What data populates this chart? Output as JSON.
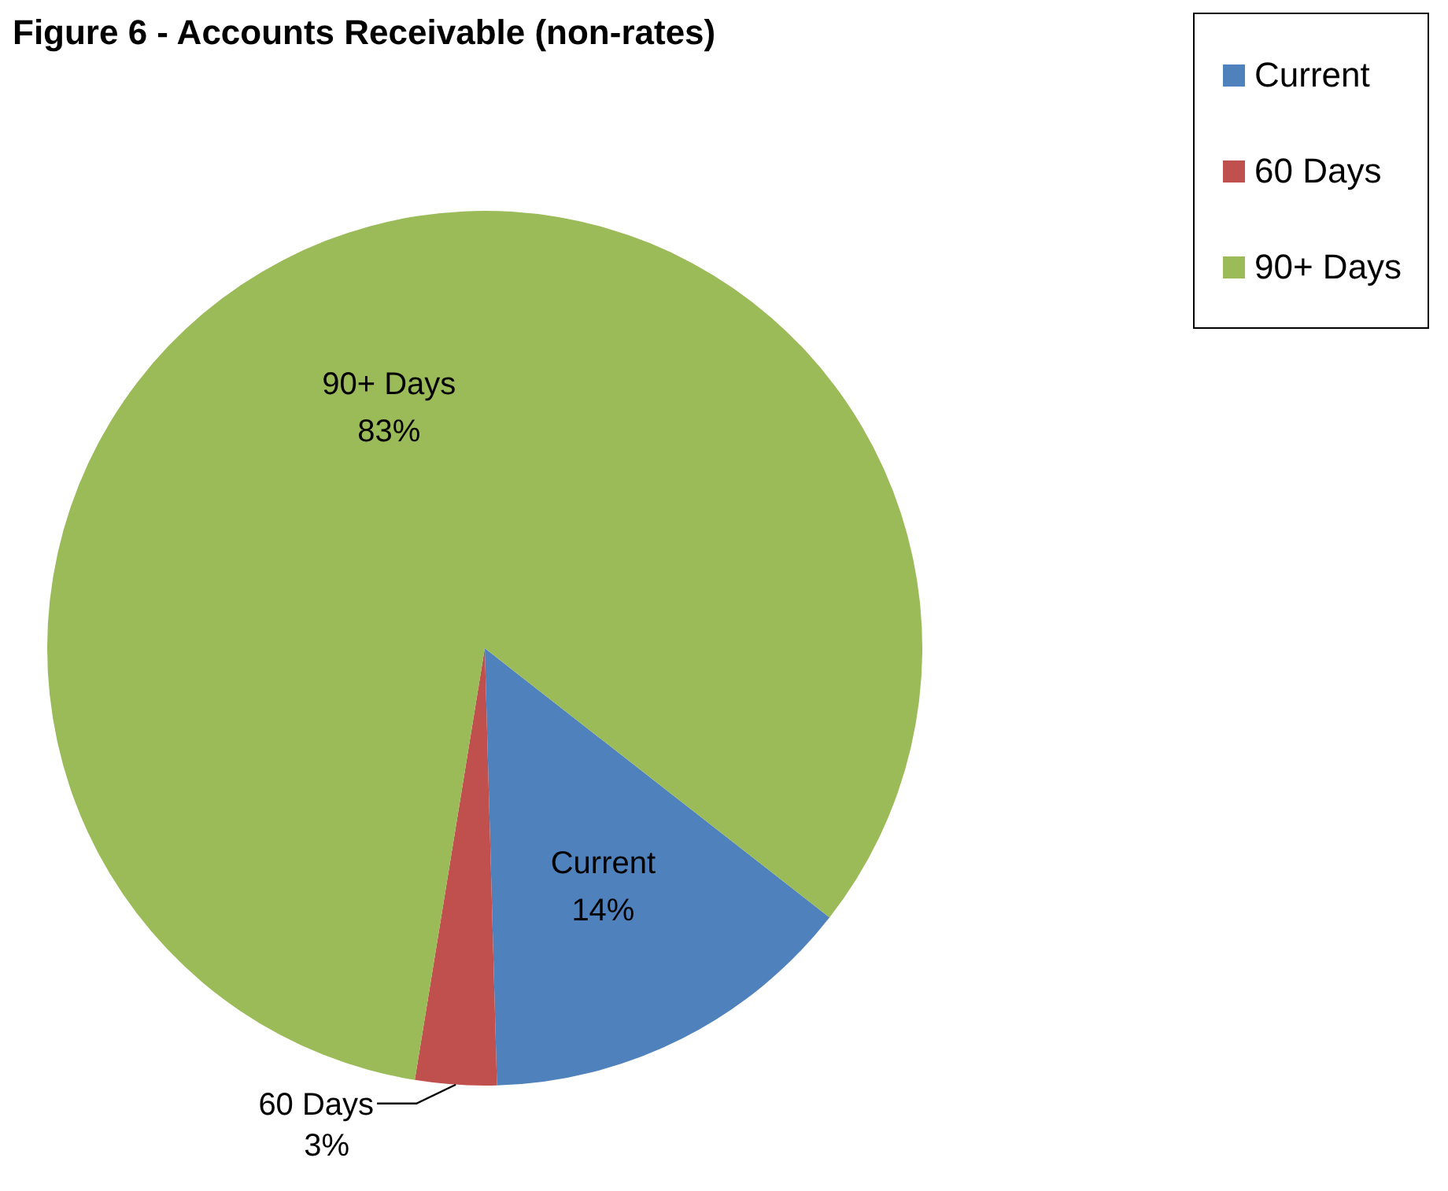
{
  "chart_data": {
    "type": "pie",
    "title": "Figure 6 - Accounts Receivable (non-rates)",
    "categories": [
      "Current",
      "60 Days",
      "90+ Days"
    ],
    "values": [
      14,
      3,
      83
    ],
    "value_labels": [
      "14%",
      "3%",
      "83%"
    ],
    "colors": [
      "#4f81bd",
      "#c0504d",
      "#9bbb59"
    ],
    "legend": "top right"
  }
}
